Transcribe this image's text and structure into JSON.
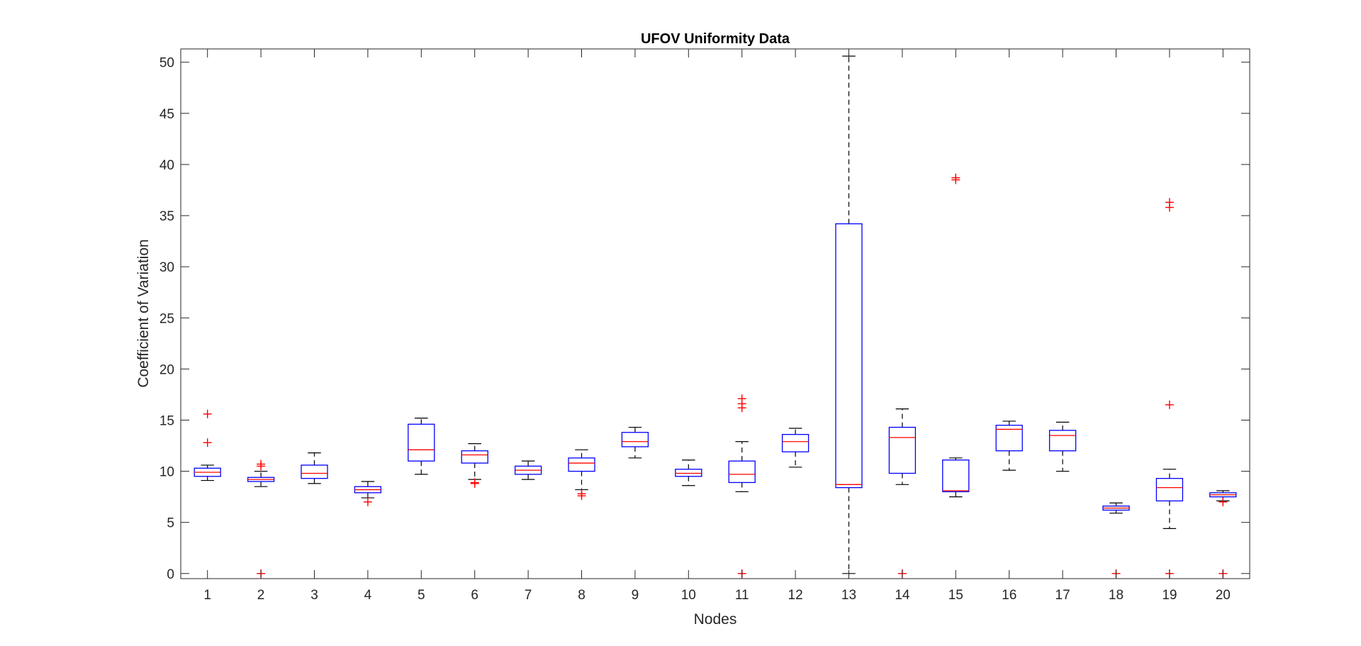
{
  "chart_data": {
    "type": "box",
    "title": "UFOV Uniformity Data",
    "xlabel": "Nodes",
    "ylabel": "Coefficient of Variation",
    "ylim": [
      -0.5,
      51.3
    ],
    "yticks": [
      0,
      5,
      10,
      15,
      20,
      25,
      30,
      35,
      40,
      45,
      50
    ],
    "categories": [
      "1",
      "2",
      "3",
      "4",
      "5",
      "6",
      "7",
      "8",
      "9",
      "10",
      "11",
      "12",
      "13",
      "14",
      "15",
      "16",
      "17",
      "18",
      "19",
      "20"
    ],
    "grid": false,
    "box_color": "#0000ff",
    "median_color": "#ff0000",
    "whisker_color": "#000000",
    "outlier_color": "#ff0000",
    "boxes": [
      {
        "whisker_low": 9.1,
        "q1": 9.5,
        "median": 9.9,
        "q3": 10.3,
        "whisker_high": 10.6,
        "outliers": [
          12.8,
          15.6
        ]
      },
      {
        "whisker_low": 8.5,
        "q1": 9.0,
        "median": 9.2,
        "q3": 9.4,
        "whisker_high": 10.0,
        "outliers": [
          0,
          10.5,
          10.7
        ]
      },
      {
        "whisker_low": 8.8,
        "q1": 9.3,
        "median": 9.8,
        "q3": 10.6,
        "whisker_high": 11.8,
        "outliers": []
      },
      {
        "whisker_low": 7.4,
        "q1": 7.9,
        "median": 8.2,
        "q3": 8.5,
        "whisker_high": 9.0,
        "outliers": [
          7.0
        ]
      },
      {
        "whisker_low": 9.7,
        "q1": 11.0,
        "median": 12.1,
        "q3": 14.6,
        "whisker_high": 15.2,
        "outliers": []
      },
      {
        "whisker_low": 9.2,
        "q1": 10.8,
        "median": 11.6,
        "q3": 12.0,
        "whisker_high": 12.7,
        "outliers": [
          8.8,
          8.9
        ]
      },
      {
        "whisker_low": 9.2,
        "q1": 9.7,
        "median": 10.1,
        "q3": 10.5,
        "whisker_high": 11.0,
        "outliers": []
      },
      {
        "whisker_low": 8.2,
        "q1": 10.0,
        "median": 10.8,
        "q3": 11.3,
        "whisker_high": 12.1,
        "outliers": [
          7.6,
          7.8
        ]
      },
      {
        "whisker_low": 11.3,
        "q1": 12.4,
        "median": 12.9,
        "q3": 13.8,
        "whisker_high": 14.3,
        "outliers": []
      },
      {
        "whisker_low": 8.6,
        "q1": 9.5,
        "median": 9.8,
        "q3": 10.2,
        "whisker_high": 11.1,
        "outliers": []
      },
      {
        "whisker_low": 8.0,
        "q1": 8.9,
        "median": 9.7,
        "q3": 11.0,
        "whisker_high": 12.9,
        "outliers": [
          0,
          16.2,
          16.6,
          17.1
        ]
      },
      {
        "whisker_low": 10.4,
        "q1": 11.9,
        "median": 12.9,
        "q3": 13.6,
        "whisker_high": 14.2,
        "outliers": []
      },
      {
        "whisker_low": 0,
        "q1": 8.4,
        "median": 8.7,
        "q3": 34.2,
        "whisker_high": 50.6,
        "outliers": []
      },
      {
        "whisker_low": 8.7,
        "q1": 9.8,
        "median": 13.3,
        "q3": 14.3,
        "whisker_high": 16.1,
        "outliers": [
          0
        ]
      },
      {
        "whisker_low": 7.5,
        "q1": 8.0,
        "median": 8.1,
        "q3": 11.1,
        "whisker_high": 11.3,
        "outliers": [
          38.5,
          38.7
        ]
      },
      {
        "whisker_low": 10.1,
        "q1": 12.0,
        "median": 14.1,
        "q3": 14.5,
        "whisker_high": 14.9,
        "outliers": []
      },
      {
        "whisker_low": 10.0,
        "q1": 12.0,
        "median": 13.5,
        "q3": 14.0,
        "whisker_high": 14.8,
        "outliers": []
      },
      {
        "whisker_low": 5.9,
        "q1": 6.2,
        "median": 6.4,
        "q3": 6.6,
        "whisker_high": 6.9,
        "outliers": [
          0
        ]
      },
      {
        "whisker_low": 4.4,
        "q1": 7.1,
        "median": 8.4,
        "q3": 9.3,
        "whisker_high": 10.2,
        "outliers": [
          0,
          16.5,
          35.8,
          36.3
        ]
      },
      {
        "whisker_low": 7.1,
        "q1": 7.5,
        "median": 7.7,
        "q3": 7.9,
        "whisker_high": 8.1,
        "outliers": [
          0,
          7.0
        ]
      }
    ]
  }
}
